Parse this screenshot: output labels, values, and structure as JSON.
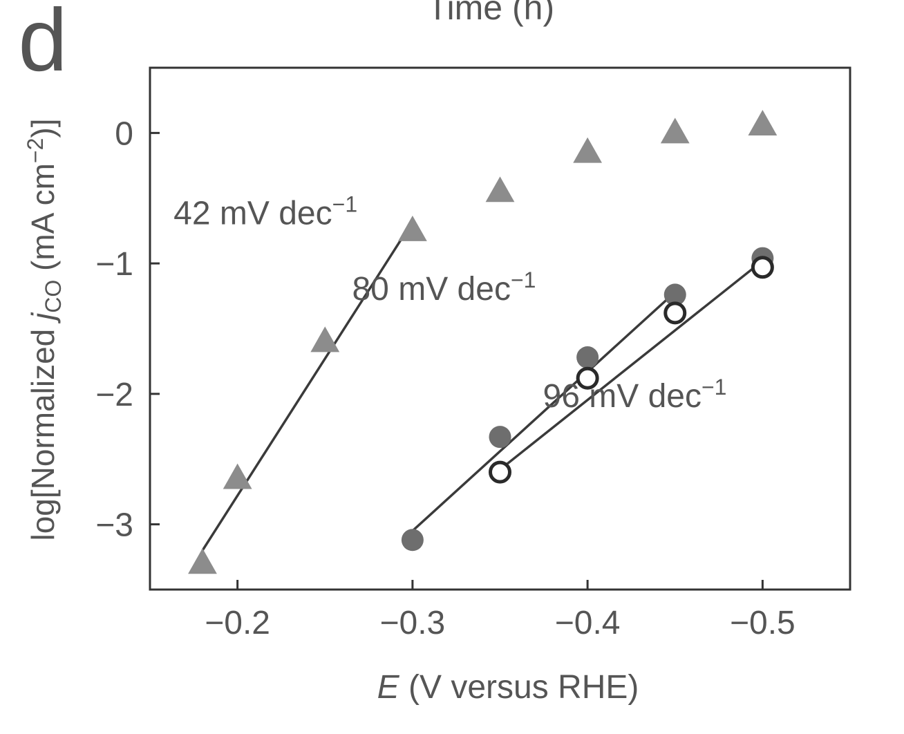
{
  "panel_label": "d",
  "top_cut_label": "Time (h)",
  "colors": {
    "triangle": "#8c8c8c",
    "filled_circle": "#6e6e6e",
    "open_circle_stroke": "#2a2a2a",
    "line": "#3a3a3a"
  },
  "chart_data": {
    "type": "scatter",
    "xlabel_italic": "E",
    "xlabel_rest": " (V versus RHE)",
    "ylabel_prefix": "log[Normalized ",
    "ylabel_italic": "j",
    "ylabel_sub": "CO",
    "ylabel_mid": " (mA cm",
    "ylabel_sup": "−2",
    "ylabel_suffix": ")]",
    "xlim": [
      -0.15,
      -0.55
    ],
    "ylim": [
      -3.5,
      0.5
    ],
    "xticks": [
      -0.2,
      -0.3,
      -0.4,
      -0.5
    ],
    "xtick_labels": [
      "−0.2",
      "−0.3",
      "−0.4",
      "−0.5"
    ],
    "yticks": [
      0,
      -1,
      -2,
      -3
    ],
    "ytick_labels": [
      "0",
      "−1",
      "−2",
      "−3"
    ],
    "series": [
      {
        "marker": "triangle",
        "x": [
          -0.18,
          -0.2,
          -0.25,
          -0.3,
          -0.35,
          -0.4,
          -0.45,
          -0.5
        ],
        "y": [
          -3.3,
          -2.65,
          -1.6,
          -0.75,
          -0.45,
          -0.15,
          0.0,
          0.06
        ]
      },
      {
        "marker": "filled-circle",
        "x": [
          -0.3,
          -0.35,
          -0.4,
          -0.45,
          -0.5
        ],
        "y": [
          -3.12,
          -2.33,
          -1.72,
          -1.24,
          -0.96
        ]
      },
      {
        "marker": "open-circle",
        "x": [
          -0.35,
          -0.4,
          -0.45,
          -0.5
        ],
        "y": [
          -2.6,
          -1.88,
          -1.38,
          -1.03
        ]
      }
    ],
    "fit_lines": [
      {
        "x": [
          -0.18,
          -0.3
        ],
        "y": [
          -3.2,
          -0.68
        ]
      },
      {
        "x": [
          -0.3,
          -0.45
        ],
        "y": [
          -3.05,
          -1.22
        ]
      },
      {
        "x": [
          -0.35,
          -0.5
        ],
        "y": [
          -2.58,
          -0.98
        ]
      }
    ],
    "annotations": [
      {
        "value": "42 mV dec",
        "sup": "−1",
        "x": -0.216,
        "y": -0.7
      },
      {
        "value": "80 mV dec",
        "sup": "−1",
        "x": -0.318,
        "y": -1.28
      },
      {
        "value": "96 mV dec",
        "sup": "−1",
        "x": -0.427,
        "y": -2.1
      }
    ]
  }
}
